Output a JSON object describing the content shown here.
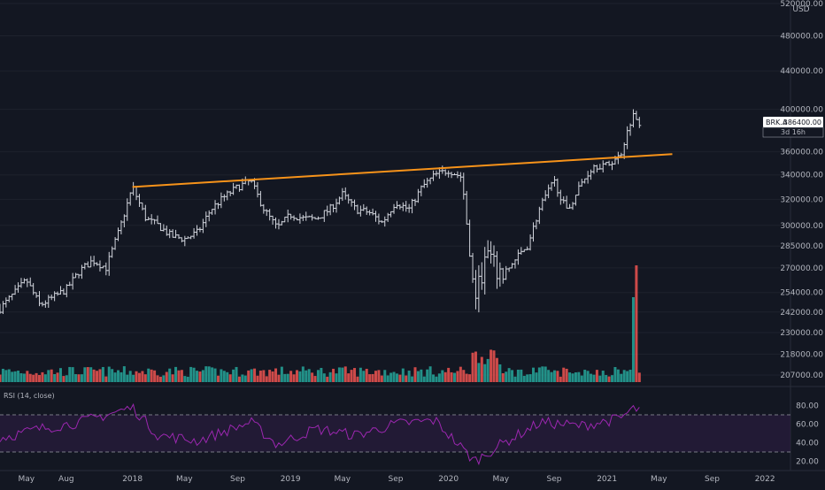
{
  "chart_data": {
    "type": "bar",
    "symbol": "BRK.A",
    "currency": "USD",
    "last_price": "386400.00",
    "countdown": "3d 16h",
    "price_axis": {
      "ticks": [
        520000,
        480000,
        440000,
        400000,
        360000,
        340000,
        320000,
        300000,
        285000,
        270000,
        254000,
        242000,
        230000,
        218000,
        207000
      ],
      "labels": [
        "520000.00",
        "480000.00",
        "440000.00",
        "400000.00",
        "360000.00",
        "340000.00",
        "320000.00",
        "300000.00",
        "285000.00",
        "270000.00",
        "254000.00",
        "242000.00",
        "230000.00",
        "218000.00",
        "207000.00"
      ],
      "scale": "log"
    },
    "time_axis": {
      "labels": [
        "May",
        "Aug",
        "2018",
        "May",
        "Sep",
        "2019",
        "May",
        "Sep",
        "2020",
        "May",
        "Sep",
        "2021",
        "May",
        "Sep",
        "2022"
      ],
      "range": [
        "2017-03",
        "2022-03"
      ]
    },
    "price_keypoints": [
      {
        "t": "2017-03",
        "p": 244000
      },
      {
        "t": "2017-05",
        "p": 262000
      },
      {
        "t": "2017-06",
        "p": 246000
      },
      {
        "t": "2017-08",
        "p": 256000
      },
      {
        "t": "2017-09",
        "p": 268000
      },
      {
        "t": "2017-10",
        "p": 275000
      },
      {
        "t": "2017-11",
        "p": 270000
      },
      {
        "t": "2017-12",
        "p": 296000
      },
      {
        "t": "2018-01",
        "p": 330000
      },
      {
        "t": "2018-02",
        "p": 305000
      },
      {
        "t": "2018-03",
        "p": 300000
      },
      {
        "t": "2018-04",
        "p": 292000
      },
      {
        "t": "2018-05",
        "p": 290000
      },
      {
        "t": "2018-06",
        "p": 295000
      },
      {
        "t": "2018-07",
        "p": 312000
      },
      {
        "t": "2018-08",
        "p": 322000
      },
      {
        "t": "2018-09",
        "p": 330000
      },
      {
        "t": "2018-10",
        "p": 335000
      },
      {
        "t": "2018-11",
        "p": 312000
      },
      {
        "t": "2018-12",
        "p": 298000
      },
      {
        "t": "2019-01",
        "p": 308000
      },
      {
        "t": "2019-02",
        "p": 305000
      },
      {
        "t": "2019-03",
        "p": 305000
      },
      {
        "t": "2019-04",
        "p": 312000
      },
      {
        "t": "2019-05",
        "p": 324000
      },
      {
        "t": "2019-06",
        "p": 312000
      },
      {
        "t": "2019-07",
        "p": 310000
      },
      {
        "t": "2019-08",
        "p": 302000
      },
      {
        "t": "2019-09",
        "p": 318000
      },
      {
        "t": "2019-10",
        "p": 312000
      },
      {
        "t": "2019-11",
        "p": 330000
      },
      {
        "t": "2019-12",
        "p": 340000
      },
      {
        "t": "2020-01",
        "p": 344000
      },
      {
        "t": "2020-02",
        "p": 338000
      },
      {
        "t": "2020-03",
        "p": 250000
      },
      {
        "t": "2020-04",
        "p": 280000
      },
      {
        "t": "2020-05",
        "p": 262000
      },
      {
        "t": "2020-06",
        "p": 275000
      },
      {
        "t": "2020-07",
        "p": 285000
      },
      {
        "t": "2020-08",
        "p": 315000
      },
      {
        "t": "2020-09",
        "p": 335000
      },
      {
        "t": "2020-10",
        "p": 310000
      },
      {
        "t": "2020-11",
        "p": 332000
      },
      {
        "t": "2020-12",
        "p": 348000
      },
      {
        "t": "2021-01",
        "p": 348000
      },
      {
        "t": "2021-02",
        "p": 357000
      },
      {
        "t": "2021-03",
        "p": 395000
      },
      {
        "t": "2021-03-20",
        "p": 386400
      }
    ],
    "trendline": {
      "color": "#f7931a",
      "start": {
        "t": "2018-01",
        "p": 330000
      },
      "end": {
        "t": "2021-06",
        "p": 358000
      }
    },
    "volume": {
      "spike_dates": [
        "2021-03-01",
        "2021-03-10"
      ],
      "spike_ratio": [
        3.2,
        4.4
      ]
    },
    "rsi": {
      "label": "RSI (14, close)",
      "ticks": [
        80,
        60,
        40,
        20
      ],
      "labels": [
        "80.00",
        "60.00",
        "40.00",
        "20.00"
      ],
      "bands": [
        70,
        30
      ],
      "keypoints": [
        {
          "t": "2017-03",
          "v": 45
        },
        {
          "t": "2017-06",
          "v": 55
        },
        {
          "t": "2017-09",
          "v": 62
        },
        {
          "t": "2018-01",
          "v": 78
        },
        {
          "t": "2018-03",
          "v": 48
        },
        {
          "t": "2018-06",
          "v": 42
        },
        {
          "t": "2018-10",
          "v": 62
        },
        {
          "t": "2018-12",
          "v": 38
        },
        {
          "t": "2019-03",
          "v": 55
        },
        {
          "t": "2019-06",
          "v": 48
        },
        {
          "t": "2019-09",
          "v": 60
        },
        {
          "t": "2019-12",
          "v": 64
        },
        {
          "t": "2020-03",
          "v": 20
        },
        {
          "t": "2020-05",
          "v": 38
        },
        {
          "t": "2020-08",
          "v": 62
        },
        {
          "t": "2020-11",
          "v": 58
        },
        {
          "t": "2021-02",
          "v": 66
        },
        {
          "t": "2021-03",
          "v": 76
        }
      ]
    },
    "colors": {
      "background": "#131722",
      "bars": "#d1d4dc",
      "volume_up": "#26a69a",
      "volume_down": "#ef5350",
      "rsi_line": "#9c27b0",
      "rsi_fill": "#2a1c3d",
      "trendline": "#f7931a"
    }
  }
}
